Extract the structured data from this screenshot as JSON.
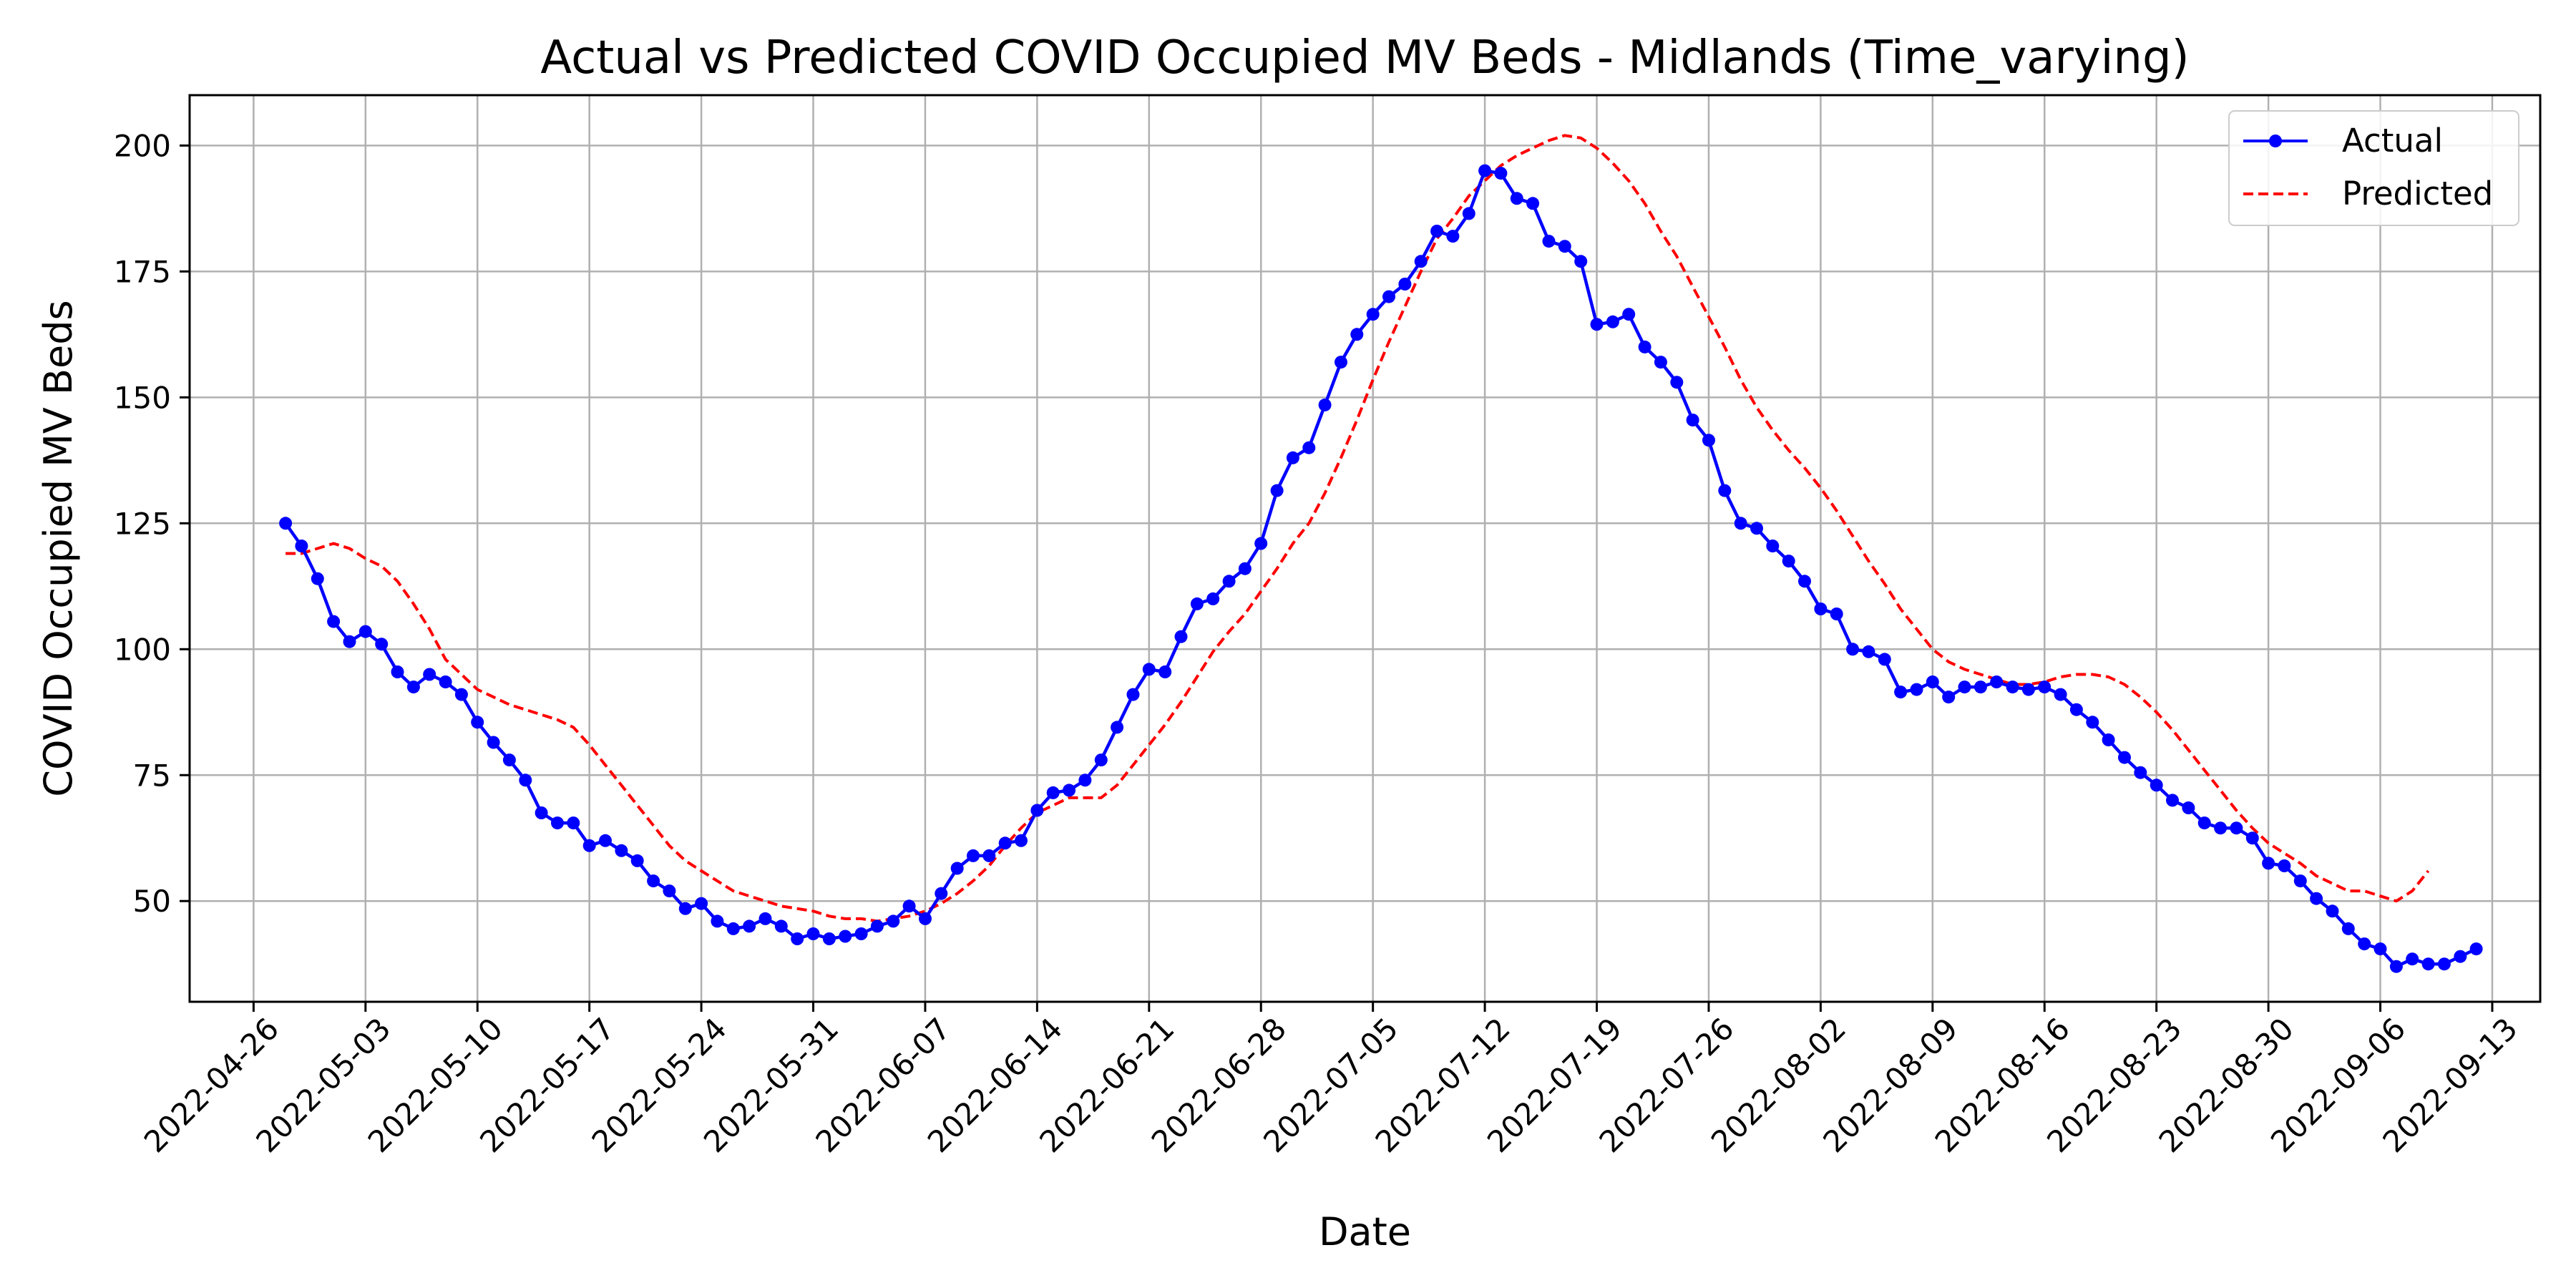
{
  "chart_data": {
    "type": "line",
    "title": "Actual vs Predicted COVID Occupied MV Beds - Midlands (Time_varying)",
    "xlabel": "Date",
    "ylabel": "COVID Occupied MV Beds",
    "xlim": [
      "2022-04-22",
      "2022-09-16"
    ],
    "ylim": [
      30,
      210
    ],
    "x_ticks": [
      "2022-04-26",
      "2022-05-03",
      "2022-05-10",
      "2022-05-17",
      "2022-05-24",
      "2022-05-31",
      "2022-06-07",
      "2022-06-14",
      "2022-06-21",
      "2022-06-28",
      "2022-07-05",
      "2022-07-12",
      "2022-07-19",
      "2022-07-26",
      "2022-08-02",
      "2022-08-09",
      "2022-08-16",
      "2022-08-23",
      "2022-08-30",
      "2022-09-06",
      "2022-09-13"
    ],
    "y_ticks": [
      50,
      75,
      100,
      125,
      150,
      175,
      200
    ],
    "grid": true,
    "legend_position": "top-right",
    "start_date": "2022-04-28",
    "series": [
      {
        "name": "Actual",
        "color": "#0000ff",
        "style": "solid-with-markers",
        "values": [
          125,
          120.5,
          114,
          105.5,
          101.5,
          103.5,
          101,
          95.5,
          92.5,
          95,
          93.5,
          91,
          85.5,
          81.5,
          78,
          74,
          67.5,
          65.5,
          65.5,
          61,
          62,
          60,
          58,
          54,
          52,
          48.5,
          49.5,
          46,
          44.5,
          45,
          46.5,
          45,
          42.5,
          43.5,
          42.5,
          43,
          43.5,
          45,
          46,
          49,
          46.5,
          51.5,
          56.5,
          59,
          59,
          61.5,
          62,
          68,
          71.5,
          72,
          74,
          78,
          84.5,
          91,
          96,
          95.5,
          102.5,
          109,
          110,
          113.5,
          116,
          121,
          131.5,
          138,
          140,
          148.5,
          157,
          162.5,
          166.5,
          170,
          172.5,
          177,
          183,
          182,
          186.5,
          195,
          194.5,
          189.5,
          188.5,
          181,
          180,
          177,
          164.5,
          165,
          166.5,
          160,
          157,
          153,
          145.5,
          141.5,
          131.5,
          125,
          124,
          120.5,
          117.5,
          113.5,
          108,
          107,
          100,
          99.5,
          98,
          91.5,
          92,
          93.5,
          90.5,
          92.5,
          92.5,
          93.5,
          92.5,
          92,
          92.5,
          91,
          88,
          85.5,
          82,
          78.5,
          75.5,
          73,
          70,
          68.5,
          65.5,
          64.5,
          64.5,
          62.5,
          57.5,
          57,
          54,
          50.5,
          48,
          44.5,
          41.5,
          40.5,
          37,
          38.5,
          37.5,
          37.5,
          39,
          40.5
        ]
      },
      {
        "name": "Predicted",
        "color": "#ff0000",
        "style": "dashed",
        "values": [
          119,
          119,
          120,
          121,
          120,
          118,
          116.5,
          113.5,
          109,
          104,
          98,
          95,
          92,
          90.5,
          89,
          88,
          87,
          86,
          84.5,
          81,
          77,
          73,
          69,
          65,
          61,
          58,
          56,
          54,
          52,
          51,
          50,
          49,
          48.5,
          48,
          47,
          46.5,
          46.5,
          46,
          46.5,
          47,
          48,
          49.5,
          51.5,
          54,
          57,
          61,
          64.5,
          67.5,
          69,
          70.5,
          70.5,
          70.5,
          73,
          77,
          81,
          85,
          89.5,
          94.5,
          99.5,
          103.5,
          107,
          111.5,
          116,
          121,
          125,
          131,
          138,
          145.5,
          153.5,
          161,
          168,
          175,
          181.5,
          185.5,
          190,
          193,
          196,
          198,
          199.5,
          201,
          202,
          201.5,
          199.5,
          196.5,
          193,
          188.5,
          183,
          178,
          172,
          166,
          160,
          153.5,
          148,
          143.5,
          139.5,
          136,
          132,
          127.5,
          122.5,
          117.5,
          113,
          108,
          104,
          100,
          97.5,
          96,
          95,
          94,
          93,
          93,
          93.5,
          94.5,
          95,
          95,
          94.5,
          93,
          90.5,
          87.5,
          84,
          80,
          76,
          72,
          68,
          64.5,
          61.5,
          59.5,
          57.5,
          55,
          53.5,
          52,
          52,
          51,
          50,
          52,
          56
        ]
      }
    ]
  }
}
